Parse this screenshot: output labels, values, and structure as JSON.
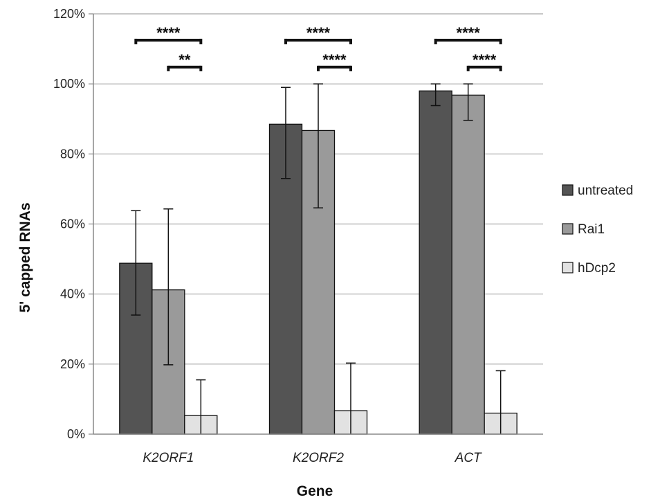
{
  "chart_data": {
    "type": "bar",
    "xlabel": "Gene",
    "ylabel": "5' capped RNAs",
    "ylim": [
      0,
      120
    ],
    "yticks": [
      0,
      20,
      40,
      60,
      80,
      100,
      120
    ],
    "ytick_labels": [
      "0%",
      "20%",
      "40%",
      "60%",
      "80%",
      "100%",
      "120%"
    ],
    "categories": [
      "K2ORF1",
      "K2ORF2",
      "ACT"
    ],
    "grid": true,
    "legend_position": "right",
    "series": [
      {
        "name": "untreated",
        "color": "#545454",
        "values": [
          48.8,
          88.5,
          98.0
        ],
        "err_low": [
          34.0,
          73.0,
          93.8
        ],
        "err_high": [
          63.8,
          99.0,
          100.0
        ]
      },
      {
        "name": "Rai1",
        "color": "#9a9a9a",
        "values": [
          41.2,
          86.7,
          96.8
        ],
        "err_low": [
          19.8,
          64.6,
          89.6
        ],
        "err_high": [
          64.3,
          100.0,
          100.0
        ]
      },
      {
        "name": "hDcp2",
        "color": "#e2e2e2",
        "values": [
          5.3,
          6.7,
          6.0
        ],
        "err_low": [
          0,
          0,
          0
        ],
        "err_high": [
          15.5,
          20.3,
          18.1
        ]
      }
    ],
    "significance": [
      {
        "category": 0,
        "from_series": 0,
        "to_series": 2,
        "label": "****",
        "y": 112.5
      },
      {
        "category": 0,
        "from_series": 1,
        "to_series": 2,
        "label": "**",
        "y": 104.8
      },
      {
        "category": 1,
        "from_series": 0,
        "to_series": 2,
        "label": "****",
        "y": 112.5
      },
      {
        "category": 1,
        "from_series": 1,
        "to_series": 2,
        "label": "****",
        "y": 104.8
      },
      {
        "category": 2,
        "from_series": 0,
        "to_series": 2,
        "label": "****",
        "y": 112.5
      },
      {
        "category": 2,
        "from_series": 1,
        "to_series": 2,
        "label": "****",
        "y": 104.8
      }
    ]
  }
}
